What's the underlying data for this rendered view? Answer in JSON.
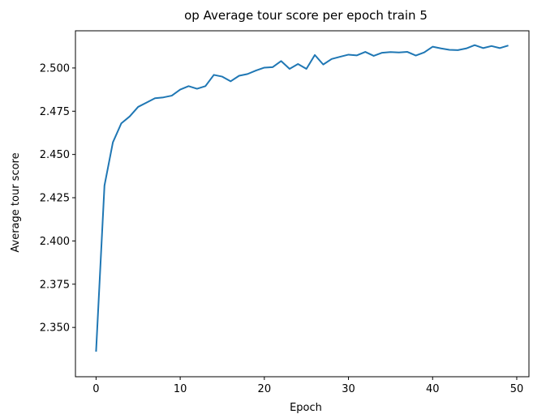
{
  "chart_data": {
    "type": "line",
    "title": "op Average tour score per epoch train 5",
    "xlabel": "Epoch",
    "ylabel": "Average tour score",
    "xlim": [
      -2.45,
      51.45
    ],
    "ylim": [
      2.3215,
      2.5215
    ],
    "xticks": [
      0,
      10,
      20,
      30,
      40,
      50
    ],
    "xtick_labels": [
      "0",
      "10",
      "20",
      "30",
      "40",
      "50"
    ],
    "yticks": [
      2.35,
      2.375,
      2.4,
      2.425,
      2.45,
      2.475,
      2.5
    ],
    "ytick_labels": [
      "2.350",
      "2.375",
      "2.400",
      "2.425",
      "2.450",
      "2.475",
      "2.500"
    ],
    "grid": false,
    "legend": "none",
    "line_color": "#1f77b4",
    "series": [
      {
        "x": [
          0,
          1,
          2,
          3,
          4,
          5,
          6,
          7,
          8,
          9,
          10,
          11,
          12,
          13,
          14,
          15,
          16,
          17,
          18,
          19,
          20,
          21,
          22,
          23,
          24,
          25,
          26,
          27,
          28,
          29,
          30,
          31,
          32,
          33,
          34,
          35,
          36,
          37,
          38,
          39,
          40,
          41,
          42,
          43,
          44,
          45,
          46,
          47,
          48,
          49
        ],
        "values": [
          2.336,
          2.432,
          2.457,
          2.468,
          2.472,
          2.4775,
          2.48,
          2.4825,
          2.483,
          2.484,
          2.4875,
          2.4895,
          2.488,
          2.4895,
          2.496,
          2.495,
          2.4923,
          2.4955,
          2.4965,
          2.4985,
          2.5002,
          2.5005,
          2.504,
          2.4995,
          2.5023,
          2.4995,
          2.5075,
          2.502,
          2.5052,
          2.5065,
          2.5077,
          2.5073,
          2.5093,
          2.507,
          2.5088,
          2.5092,
          2.509,
          2.5093,
          2.5072,
          2.509,
          2.5123,
          2.5113,
          2.5105,
          2.5103,
          2.5113,
          2.5132,
          2.5115,
          2.5127,
          2.5115,
          2.513
        ]
      }
    ]
  }
}
